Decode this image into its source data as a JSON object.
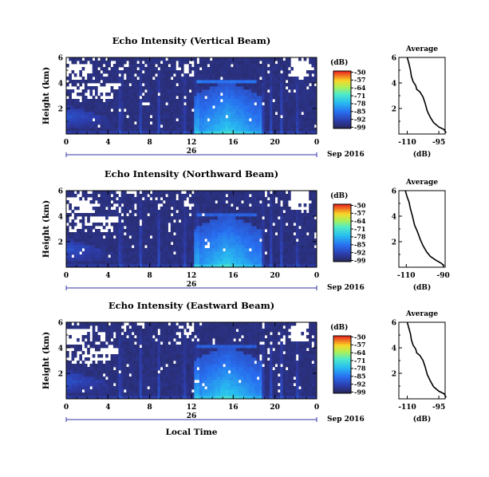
{
  "chart_data": [
    {
      "type": "heatmap",
      "title": "Echo Intensity (Vertical Beam)",
      "ylabel": "Height (km)",
      "xticks": [
        "0",
        "4",
        "8",
        "12",
        "16",
        "20",
        "0"
      ],
      "xlim": [
        0,
        24
      ],
      "yticks": [
        "2",
        "4",
        "6"
      ],
      "ylim": [
        0,
        6
      ],
      "date_label": "26",
      "date_suffix": "Sep 2016",
      "colorbar": {
        "unit": "(dB)",
        "ticks": [
          "-50",
          "-57",
          "-64",
          "-71",
          "-78",
          "-85",
          "-92",
          "-99"
        ]
      },
      "average": {
        "title": "Average",
        "xlabel": "(dB)",
        "xticks": [
          "-110",
          "-95"
        ],
        "xlim": [
          -114,
          -92
        ],
        "yticks": [
          "2",
          "4",
          "6"
        ],
        "ylim": [
          0,
          6
        ],
        "profile": [
          [
            -91.5,
            0.1
          ],
          [
            -92.5,
            0.35
          ],
          [
            -95,
            0.55
          ],
          [
            -97.5,
            0.9
          ],
          [
            -99,
            1.3
          ],
          [
            -100.5,
            1.8
          ],
          [
            -101.5,
            2.4
          ],
          [
            -102.5,
            2.9
          ],
          [
            -104,
            3.3
          ],
          [
            -105.5,
            3.5
          ],
          [
            -106,
            3.8
          ],
          [
            -107.2,
            4.1
          ],
          [
            -108,
            4.5
          ],
          [
            -108.5,
            5
          ],
          [
            -109.2,
            5.5
          ],
          [
            -110,
            6
          ]
        ]
      }
    },
    {
      "type": "heatmap",
      "title": "Echo Intensity (Northward Beam)",
      "ylabel": "Height (km)",
      "xticks": [
        "0",
        "4",
        "8",
        "12",
        "16",
        "20",
        "0"
      ],
      "xlim": [
        0,
        24
      ],
      "yticks": [
        "2",
        "4",
        "6"
      ],
      "ylim": [
        0,
        6
      ],
      "date_label": "26",
      "date_suffix": "Sep 2016",
      "colorbar": {
        "unit": "(dB)",
        "ticks": [
          "-50",
          "-57",
          "-64",
          "-71",
          "-78",
          "-85",
          "-92",
          "-99"
        ]
      },
      "average": {
        "title": "Average",
        "xlabel": "(dB)",
        "xticks": [
          "-110",
          "-90"
        ],
        "xlim": [
          -114,
          -89
        ],
        "yticks": [
          "2",
          "4",
          "6"
        ],
        "ylim": [
          0,
          6
        ],
        "profile": [
          [
            -89.5,
            0.1
          ],
          [
            -91,
            0.3
          ],
          [
            -94,
            0.55
          ],
          [
            -97,
            0.85
          ],
          [
            -99,
            1.2
          ],
          [
            -101,
            1.7
          ],
          [
            -102.5,
            2.2
          ],
          [
            -104,
            2.8
          ],
          [
            -105.5,
            3.3
          ],
          [
            -106.5,
            3.9
          ],
          [
            -107,
            4.2
          ],
          [
            -107.8,
            4.6
          ],
          [
            -108.5,
            5.1
          ],
          [
            -109.5,
            5.5
          ],
          [
            -110.5,
            6
          ]
        ]
      }
    },
    {
      "type": "heatmap",
      "title": "Echo Intensity (Eastward Beam)",
      "ylabel": "Height (km)",
      "xlabel": "Local Time",
      "xticks": [
        "0",
        "4",
        "8",
        "12",
        "16",
        "20",
        "0"
      ],
      "xlim": [
        0,
        24
      ],
      "yticks": [
        "2",
        "4",
        "6"
      ],
      "ylim": [
        0,
        6
      ],
      "date_label": "26",
      "date_suffix": "Sep 2016",
      "colorbar": {
        "unit": "(dB)",
        "ticks": [
          "-50",
          "-57",
          "-64",
          "-71",
          "-78",
          "-85",
          "-92",
          "-99"
        ]
      },
      "average": {
        "title": "Average",
        "xlabel": "(dB)",
        "xticks": [
          "-110",
          "-95"
        ],
        "xlim": [
          -114,
          -92
        ],
        "yticks": [
          "2",
          "4",
          "6"
        ],
        "ylim": [
          0,
          6
        ],
        "profile": [
          [
            -91.5,
            0.1
          ],
          [
            -92.5,
            0.4
          ],
          [
            -95,
            0.6
          ],
          [
            -97.5,
            0.95
          ],
          [
            -99,
            1.4
          ],
          [
            -100.5,
            1.9
          ],
          [
            -101.5,
            2.5
          ],
          [
            -102.5,
            3
          ],
          [
            -104,
            3.4
          ],
          [
            -105.5,
            3.6
          ],
          [
            -106,
            3.9
          ],
          [
            -107.2,
            4.2
          ],
          [
            -108,
            4.6
          ],
          [
            -108.5,
            5.1
          ],
          [
            -109.2,
            5.5
          ],
          [
            -110,
            6
          ]
        ]
      }
    }
  ]
}
